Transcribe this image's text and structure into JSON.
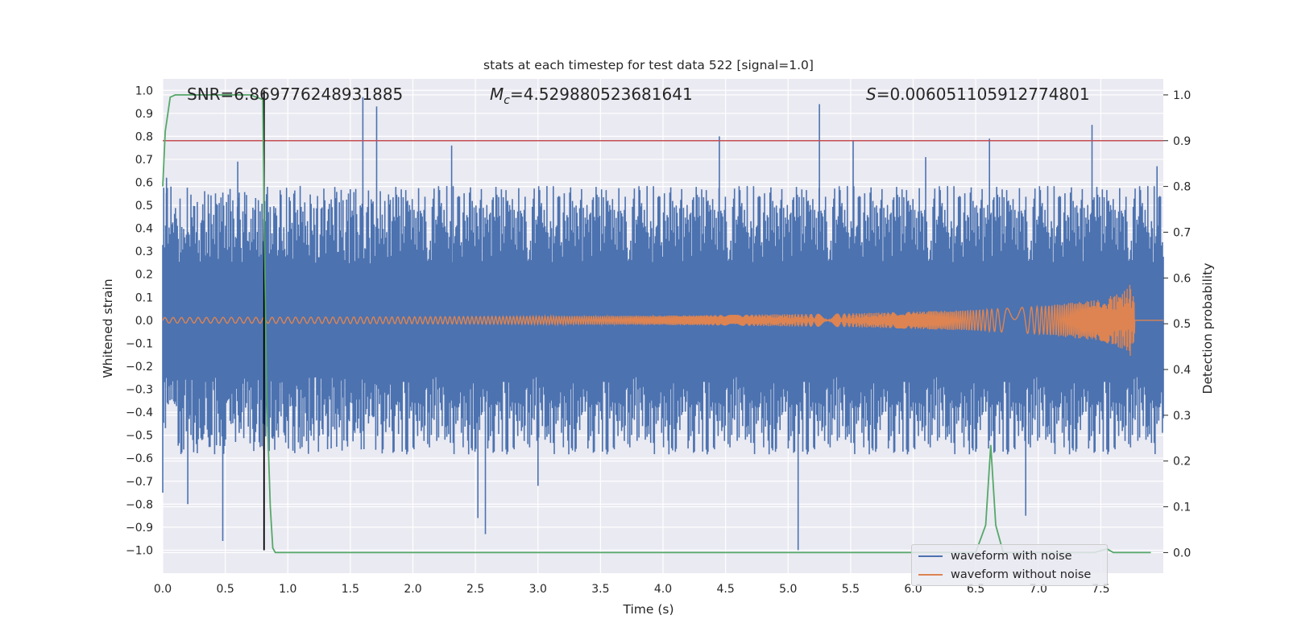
{
  "chart_data": {
    "type": "line",
    "title": "stats at each timestep for test data 522 [signal=1.0]",
    "xlabel": "Time (s)",
    "ylabel_left": "Whitened strain",
    "ylabel_right": "Detection probability",
    "xlim": [
      0.0,
      8.0
    ],
    "ylim_left": [
      -1.1,
      1.05
    ],
    "ylim_right": [
      -0.045,
      1.035
    ],
    "x_ticks": [
      "0.0",
      "0.5",
      "1.0",
      "1.5",
      "2.0",
      "2.5",
      "3.0",
      "3.5",
      "4.0",
      "4.5",
      "5.0",
      "5.5",
      "6.0",
      "6.5",
      "7.0",
      "7.5"
    ],
    "y_ticks_left": [
      "1.0",
      "0.9",
      "0.8",
      "0.7",
      "0.6",
      "0.5",
      "0.4",
      "0.3",
      "0.2",
      "0.1",
      "0.0",
      "−0.1",
      "−0.2",
      "−0.3",
      "−0.4",
      "−0.5",
      "−0.6",
      "−0.7",
      "−0.8",
      "−0.9",
      "−1.0"
    ],
    "y_ticks_right": [
      "1.0",
      "0.9",
      "0.8",
      "0.7",
      "0.6",
      "0.5",
      "0.4",
      "0.3",
      "0.2",
      "0.1",
      "0.0"
    ],
    "annotations": {
      "snr": "SNR=6.869776248931885",
      "mc_symbol": "M",
      "mc_sub": "c",
      "mc_value": "=4.529880523681641",
      "s_symbol": "S",
      "s_value": "=0.006051105912774801"
    },
    "grid": true,
    "legend_position": "lower-right",
    "colors": {
      "noise": "#4c72b0",
      "clean": "#dd8452",
      "prob": "#55a868",
      "threshold": "#c44e52",
      "marker": "#000000",
      "background": "#eaeaf2"
    },
    "series": [
      {
        "name": "waveform with noise",
        "axis": "left",
        "kind": "noise-band",
        "base_amplitude": [
          [
            0.0,
            0.45
          ],
          [
            8.0,
            0.45
          ]
        ],
        "peaks": [
          [
            0.0,
            -0.75
          ],
          [
            0.03,
            0.62
          ],
          [
            0.2,
            -0.8
          ],
          [
            0.48,
            -0.96
          ],
          [
            0.6,
            0.69
          ],
          [
            0.8,
            -0.45
          ],
          [
            1.6,
            0.97
          ],
          [
            1.71,
            0.93
          ],
          [
            2.31,
            0.76
          ],
          [
            2.52,
            -0.86
          ],
          [
            2.58,
            -0.93
          ],
          [
            3.0,
            -0.72
          ],
          [
            4.45,
            0.8
          ],
          [
            5.08,
            -1.0
          ],
          [
            5.25,
            0.94
          ],
          [
            5.52,
            0.78
          ],
          [
            6.1,
            0.71
          ],
          [
            6.61,
            0.79
          ],
          [
            6.9,
            -0.85
          ],
          [
            7.43,
            0.85
          ],
          [
            7.95,
            0.67
          ]
        ]
      },
      {
        "name": "waveform without noise",
        "axis": "left",
        "kind": "chirp",
        "envelope": [
          [
            0.0,
            0.012
          ],
          [
            2.0,
            0.015
          ],
          [
            4.0,
            0.02
          ],
          [
            5.5,
            0.03
          ],
          [
            6.5,
            0.045
          ],
          [
            7.0,
            0.06
          ],
          [
            7.5,
            0.09
          ],
          [
            7.7,
            0.13
          ],
          [
            7.75,
            0.17
          ],
          [
            7.78,
            0.0
          ],
          [
            8.0,
            0.0
          ]
        ],
        "freq_start": 30,
        "freq_end": 260,
        "merger_time": 7.77
      },
      {
        "name": "detection probability",
        "axis": "right",
        "x": [
          0.0,
          0.02,
          0.06,
          0.1,
          0.3,
          0.5,
          0.7,
          0.8,
          0.81,
          0.83,
          0.86,
          0.88,
          0.9,
          1.0,
          2.0,
          3.0,
          4.0,
          5.0,
          6.0,
          6.5,
          6.58,
          6.62,
          6.66,
          6.72,
          6.8,
          7.0,
          7.45,
          7.55,
          7.6,
          7.7,
          7.9
        ],
        "y": [
          0.8,
          0.92,
          0.995,
          1.0,
          1.0,
          1.0,
          1.0,
          0.99,
          0.75,
          0.35,
          0.1,
          0.01,
          0.0,
          0.0,
          0.0,
          0.0,
          0.0,
          0.0,
          0.0,
          0.0,
          0.06,
          0.235,
          0.06,
          0.0,
          0.0,
          0.0,
          0.0,
          0.008,
          0.0,
          0.0,
          0.0
        ]
      },
      {
        "name": "detection threshold",
        "axis": "right",
        "value": 0.9
      }
    ],
    "marker_time": 0.81,
    "legend_entries": [
      "waveform with noise",
      "waveform without noise"
    ]
  }
}
